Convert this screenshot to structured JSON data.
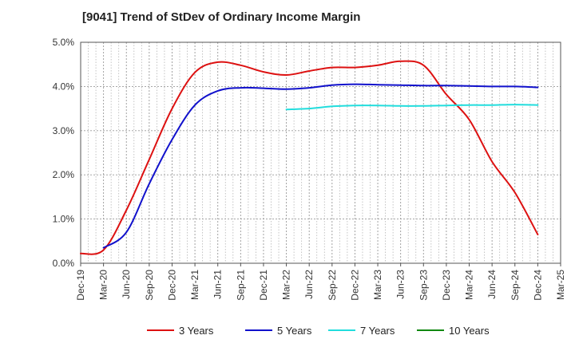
{
  "chart_data": {
    "type": "line",
    "title": "[9041]  Trend of StDev of Ordinary Income Margin",
    "xlabel": "",
    "ylabel": "",
    "ylim": [
      0,
      5
    ],
    "grid": true,
    "legend_position": "bottom",
    "y_ticks": [
      "0.0%",
      "1.0%",
      "2.0%",
      "3.0%",
      "4.0%",
      "5.0%"
    ],
    "x_ticks": [
      "Dec-19",
      "Mar-20",
      "Jun-20",
      "Sep-20",
      "Dec-20",
      "Mar-21",
      "Jun-21",
      "Sep-21",
      "Dec-21",
      "Mar-22",
      "Jun-22",
      "Sep-22",
      "Dec-22",
      "Mar-23",
      "Jun-23",
      "Sep-23",
      "Dec-23",
      "Mar-24",
      "Jun-24",
      "Sep-24",
      "Dec-24",
      "Mar-25"
    ],
    "series": [
      {
        "name": "3 Years",
        "color": "#dd1111",
        "points": [
          [
            "Dec-19",
            0.22
          ],
          [
            "Mar-20",
            0.3
          ],
          [
            "Jun-20",
            1.2
          ],
          [
            "Sep-20",
            2.35
          ],
          [
            "Dec-20",
            3.5
          ],
          [
            "Mar-21",
            4.32
          ],
          [
            "Jun-21",
            4.55
          ],
          [
            "Sep-21",
            4.48
          ],
          [
            "Dec-21",
            4.33
          ],
          [
            "Mar-22",
            4.26
          ],
          [
            "Jun-22",
            4.35
          ],
          [
            "Sep-22",
            4.43
          ],
          [
            "Dec-22",
            4.43
          ],
          [
            "Mar-23",
            4.48
          ],
          [
            "Jun-23",
            4.57
          ],
          [
            "Sep-23",
            4.48
          ],
          [
            "Dec-23",
            3.82
          ],
          [
            "Mar-24",
            3.25
          ],
          [
            "Jun-24",
            2.3
          ],
          [
            "Sep-24",
            1.6
          ],
          [
            "Dec-24",
            0.65
          ]
        ]
      },
      {
        "name": "5 Years",
        "color": "#1111cc",
        "points": [
          [
            "Mar-20",
            0.35
          ],
          [
            "Jun-20",
            0.7
          ],
          [
            "Sep-20",
            1.8
          ],
          [
            "Dec-20",
            2.8
          ],
          [
            "Mar-21",
            3.58
          ],
          [
            "Jun-21",
            3.9
          ],
          [
            "Sep-21",
            3.97
          ],
          [
            "Dec-21",
            3.96
          ],
          [
            "Mar-22",
            3.94
          ],
          [
            "Jun-22",
            3.97
          ],
          [
            "Sep-22",
            4.03
          ],
          [
            "Dec-22",
            4.05
          ],
          [
            "Mar-23",
            4.04
          ],
          [
            "Jun-23",
            4.03
          ],
          [
            "Sep-23",
            4.02
          ],
          [
            "Dec-23",
            4.02
          ],
          [
            "Mar-24",
            4.01
          ],
          [
            "Jun-24",
            4.0
          ],
          [
            "Sep-24",
            4.0
          ],
          [
            "Dec-24",
            3.98
          ]
        ]
      },
      {
        "name": "7 Years",
        "color": "#22dddd",
        "points": [
          [
            "Mar-22",
            3.48
          ],
          [
            "Jun-22",
            3.5
          ],
          [
            "Sep-22",
            3.55
          ],
          [
            "Dec-22",
            3.57
          ],
          [
            "Mar-23",
            3.57
          ],
          [
            "Jun-23",
            3.56
          ],
          [
            "Sep-23",
            3.56
          ],
          [
            "Dec-23",
            3.57
          ],
          [
            "Mar-24",
            3.58
          ],
          [
            "Jun-24",
            3.58
          ],
          [
            "Sep-24",
            3.59
          ],
          [
            "Dec-24",
            3.58
          ]
        ]
      },
      {
        "name": "10 Years",
        "color": "#118811",
        "points": []
      }
    ]
  }
}
